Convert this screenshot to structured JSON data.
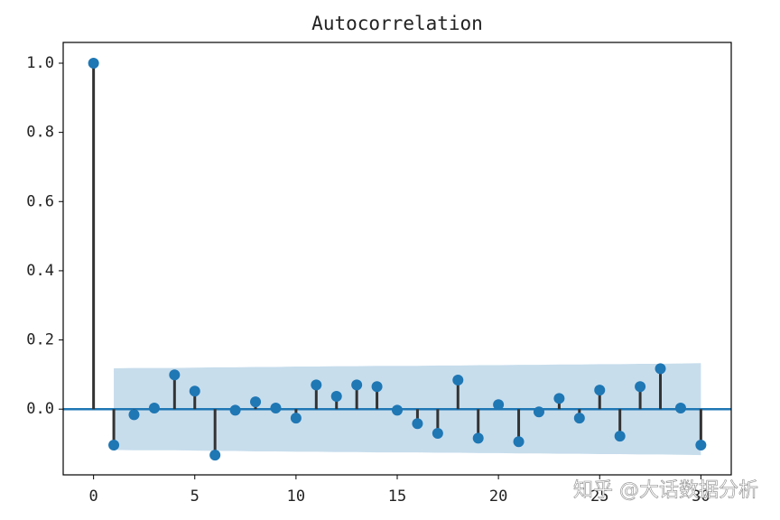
{
  "chart_data": {
    "type": "stem",
    "title": "Autocorrelation",
    "watermark": "知乎 @大话数据分析",
    "x": [
      0,
      1,
      2,
      3,
      4,
      5,
      6,
      7,
      8,
      9,
      10,
      11,
      12,
      13,
      14,
      15,
      16,
      17,
      18,
      19,
      20,
      21,
      22,
      23,
      24,
      25,
      26,
      27,
      28,
      29,
      30
    ],
    "values": [
      1.0,
      -0.104,
      -0.016,
      0.003,
      0.099,
      0.052,
      -0.133,
      -0.003,
      0.021,
      0.003,
      -0.026,
      0.07,
      0.037,
      0.07,
      0.065,
      -0.003,
      -0.042,
      -0.07,
      0.084,
      -0.084,
      0.013,
      -0.094,
      -0.008,
      0.031,
      -0.026,
      0.055,
      -0.078,
      0.065,
      0.117,
      0.003,
      -0.104
    ],
    "band_x": [
      1,
      2,
      3,
      4,
      5,
      6,
      7,
      8,
      9,
      10,
      11,
      12,
      13,
      14,
      15,
      16,
      17,
      18,
      19,
      20,
      21,
      22,
      23,
      24,
      25,
      26,
      27,
      28,
      29,
      30
    ],
    "band_upper": [
      0.118,
      0.119,
      0.119,
      0.119,
      0.12,
      0.121,
      0.121,
      0.122,
      0.122,
      0.123,
      0.123,
      0.124,
      0.124,
      0.125,
      0.125,
      0.125,
      0.126,
      0.126,
      0.127,
      0.127,
      0.128,
      0.128,
      0.129,
      0.129,
      0.13,
      0.13,
      0.131,
      0.131,
      0.132,
      0.133
    ],
    "band_lower": [
      -0.118,
      -0.119,
      -0.119,
      -0.119,
      -0.12,
      -0.121,
      -0.121,
      -0.122,
      -0.122,
      -0.123,
      -0.123,
      -0.124,
      -0.124,
      -0.125,
      -0.125,
      -0.125,
      -0.126,
      -0.126,
      -0.127,
      -0.127,
      -0.128,
      -0.128,
      -0.129,
      -0.129,
      -0.13,
      -0.13,
      -0.131,
      -0.131,
      -0.132,
      -0.133
    ],
    "color": "#1f77b4",
    "stem_color": "#333333",
    "band_color": "#1f77b4",
    "xlim": [
      -1.5,
      31.5
    ],
    "ylim": [
      -0.19,
      1.06
    ],
    "xticks": [
      0,
      5,
      10,
      15,
      20,
      25,
      30
    ],
    "yticks": [
      {
        "value": 0,
        "label": "0.0"
      },
      0.2,
      0.4,
      0.6,
      0.8,
      {
        "value": 1,
        "label": "1.0"
      }
    ]
  }
}
